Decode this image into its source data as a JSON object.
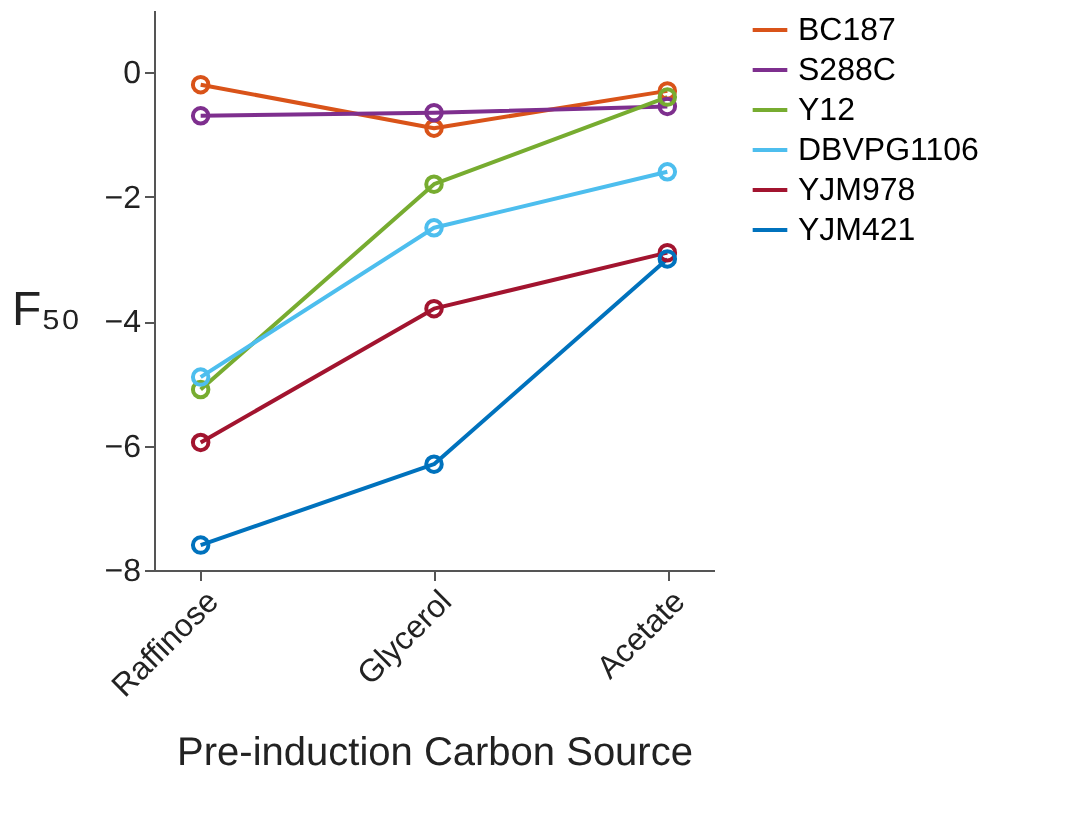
{
  "chart_data": {
    "type": "line",
    "xlabel": "Pre-induction Carbon Source",
    "ylabel": "F₅₀",
    "categories": [
      "Raffinose",
      "Glycerol",
      "Acetate"
    ],
    "series": [
      {
        "name": "BC187",
        "color": "#d95319",
        "values": [
          -0.2,
          -0.9,
          -0.3
        ]
      },
      {
        "name": "S288C",
        "color": "#7e2f8e",
        "values": [
          -0.7,
          -0.65,
          -0.55
        ]
      },
      {
        "name": "Y12",
        "color": "#77ac30",
        "values": [
          -5.1,
          -1.8,
          -0.4
        ]
      },
      {
        "name": "DBVPG1106",
        "color": "#4dbeee",
        "values": [
          -4.9,
          -2.5,
          -1.6
        ]
      },
      {
        "name": "YJM978",
        "color": "#a2142f",
        "values": [
          -5.95,
          -3.8,
          -2.9
        ]
      },
      {
        "name": "YJM421",
        "color": "#0072bd",
        "values": [
          -7.6,
          -6.3,
          -3.0
        ]
      }
    ],
    "ylim": [
      -8,
      1
    ],
    "yticks": [
      -8,
      -6,
      -4,
      -2,
      0
    ],
    "grid": false,
    "legend": "right",
    "marker": "circle",
    "line_style": "solid"
  }
}
